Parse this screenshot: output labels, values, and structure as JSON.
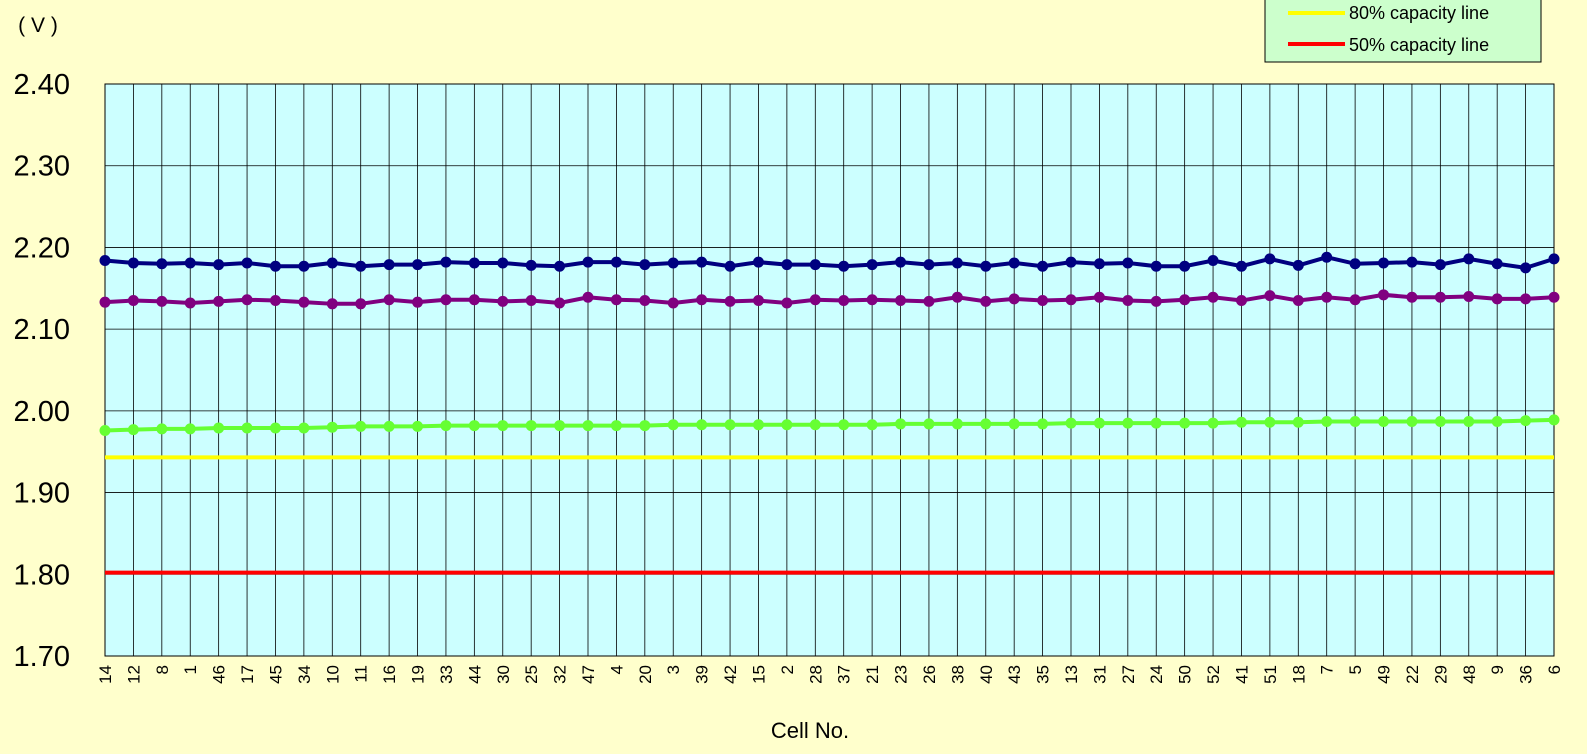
{
  "chart_data": {
    "type": "line",
    "title": "",
    "xlabel": "Cell No.",
    "ylabel": "( V )",
    "ylim": [
      1.7,
      2.4
    ],
    "yticks": [
      "1.70",
      "1.80",
      "1.90",
      "2.00",
      "2.10",
      "2.20",
      "2.30",
      "2.40"
    ],
    "grid": true,
    "legend_position": "top-right",
    "categories": [
      "14",
      "12",
      "8",
      "1",
      "46",
      "17",
      "45",
      "34",
      "10",
      "11",
      "16",
      "19",
      "33",
      "44",
      "30",
      "25",
      "32",
      "47",
      "4",
      "20",
      "3",
      "39",
      "42",
      "15",
      "2",
      "28",
      "37",
      "21",
      "23",
      "26",
      "38",
      "40",
      "43",
      "35",
      "13",
      "31",
      "27",
      "24",
      "50",
      "52",
      "41",
      "51",
      "18",
      "7",
      "5",
      "49",
      "22",
      "29",
      "48",
      "9",
      "36",
      "6"
    ],
    "series": [
      {
        "color": "#000080",
        "values": [
          2.184,
          2.181,
          2.18,
          2.181,
          2.179,
          2.181,
          2.177,
          2.177,
          2.181,
          2.177,
          2.179,
          2.179,
          2.182,
          2.181,
          2.181,
          2.178,
          2.177,
          2.182,
          2.182,
          2.179,
          2.181,
          2.182,
          2.177,
          2.182,
          2.179,
          2.179,
          2.177,
          2.179,
          2.182,
          2.179,
          2.181,
          2.177,
          2.181,
          2.177,
          2.182,
          2.18,
          2.181,
          2.177,
          2.177,
          2.184,
          2.177,
          2.186,
          2.178,
          2.188,
          2.18,
          2.181,
          2.182,
          2.179,
          2.186,
          2.18,
          2.175,
          2.186
        ]
      },
      {
        "color": "#800080",
        "values": [
          2.133,
          2.135,
          2.134,
          2.132,
          2.134,
          2.136,
          2.135,
          2.133,
          2.131,
          2.131,
          2.136,
          2.133,
          2.136,
          2.136,
          2.134,
          2.135,
          2.132,
          2.139,
          2.136,
          2.135,
          2.132,
          2.136,
          2.134,
          2.135,
          2.132,
          2.136,
          2.135,
          2.136,
          2.135,
          2.134,
          2.139,
          2.134,
          2.137,
          2.135,
          2.136,
          2.139,
          2.135,
          2.134,
          2.136,
          2.139,
          2.135,
          2.141,
          2.135,
          2.139,
          2.136,
          2.142,
          2.139,
          2.139,
          2.14,
          2.137,
          2.137,
          2.139
        ]
      },
      {
        "color": "#66FF33",
        "values": [
          1.976,
          1.977,
          1.978,
          1.978,
          1.979,
          1.979,
          1.979,
          1.979,
          1.98,
          1.981,
          1.981,
          1.981,
          1.982,
          1.982,
          1.982,
          1.982,
          1.982,
          1.982,
          1.982,
          1.982,
          1.983,
          1.983,
          1.983,
          1.983,
          1.983,
          1.983,
          1.983,
          1.983,
          1.984,
          1.984,
          1.984,
          1.984,
          1.984,
          1.984,
          1.985,
          1.985,
          1.985,
          1.985,
          1.985,
          1.985,
          1.986,
          1.986,
          1.986,
          1.987,
          1.987,
          1.987,
          1.987,
          1.987,
          1.987,
          1.987,
          1.988,
          1.989
        ]
      }
    ],
    "reference_lines": [
      {
        "name": "80% capacity line",
        "value": 1.943,
        "color": "#FFFF00"
      },
      {
        "name": "50% capacity line",
        "value": 1.802,
        "color": "#FF0000"
      }
    ],
    "colors": {
      "page_background": "#FFFFCC",
      "plot_background": "#CCFFFF",
      "legend_background": "#CCFFCC"
    }
  }
}
